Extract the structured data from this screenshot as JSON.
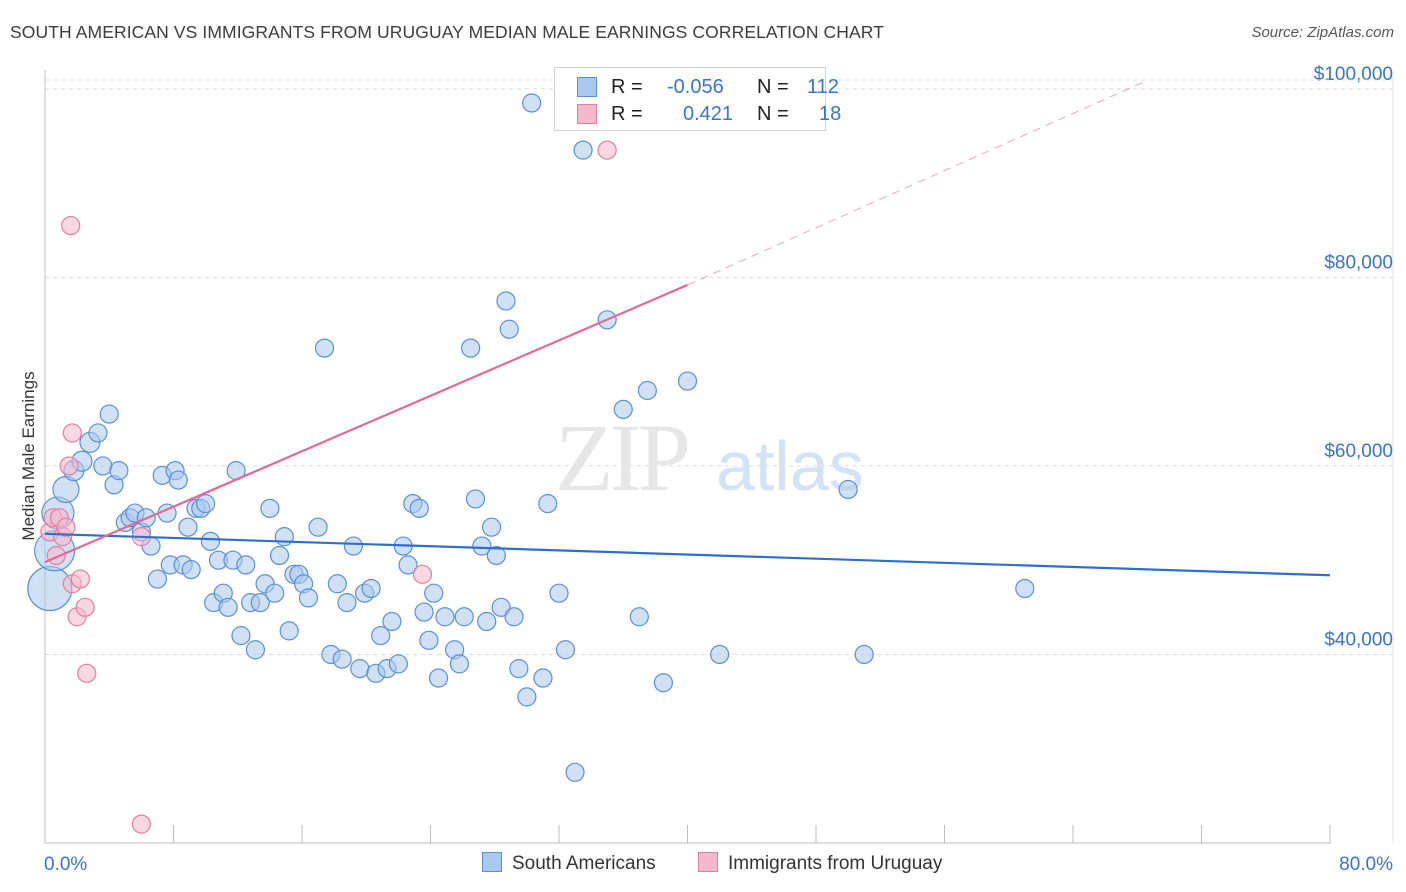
{
  "title": "SOUTH AMERICAN VS IMMIGRANTS FROM URUGUAY MEDIAN MALE EARNINGS CORRELATION CHART",
  "source": "Source: ZipAtlas.com",
  "legend": {
    "rows": [
      {
        "r_label": "R =",
        "r_value": "-0.056",
        "n_label": "N =",
        "n_value": "112"
      },
      {
        "r_label": "R =",
        "r_value": "0.421",
        "n_label": "N =",
        "n_value": "18"
      }
    ]
  },
  "watermark": {
    "zip": "ZIP",
    "atlas": "atlas"
  },
  "colors": {
    "blue_fill": "#a9c8ee",
    "blue_stroke": "#5b8fd6",
    "blue_line": "#2f6fcc",
    "pink_fill": "#f6b8cc",
    "pink_stroke": "#e07fa0",
    "pink_line": "#e06a96",
    "tick_text": "#3b73c9",
    "grid": "#dcdcdc"
  },
  "chart_data": {
    "type": "scatter",
    "title": "SOUTH AMERICAN VS IMMIGRANTS FROM URUGUAY MEDIAN MALE EARNINGS CORRELATION CHART",
    "xlabel": "",
    "ylabel": "Median Male Earnings",
    "xlim": [
      0,
      80
    ],
    "ylim": [
      20000,
      102000
    ],
    "x_tick_labels": [
      "0.0%",
      "80.0%"
    ],
    "y_ticks": [
      40000,
      60000,
      80000,
      100000
    ],
    "y_tick_labels": [
      "$40,000",
      "$60,000",
      "$80,000",
      "$100,000"
    ],
    "grid": true,
    "legend_position": "top-center",
    "series": [
      {
        "name": "South Americans",
        "r": -0.056,
        "n": 112,
        "trend": {
          "x": [
            0,
            80
          ],
          "y": [
            52800,
            48400
          ],
          "dashed_beyond": null
        },
        "points": [
          [
            0.3,
            47000,
            22
          ],
          [
            0.6,
            51000,
            20
          ],
          [
            0.8,
            55000,
            16
          ],
          [
            1.3,
            57500,
            13
          ],
          [
            1.8,
            59500,
            10
          ],
          [
            2.3,
            60500,
            10
          ],
          [
            2.8,
            62500,
            10
          ],
          [
            3.3,
            63500,
            9
          ],
          [
            3.6,
            60000,
            9
          ],
          [
            4.0,
            65500,
            9
          ],
          [
            4.3,
            58000,
            9
          ],
          [
            4.6,
            59500,
            9
          ],
          [
            5.0,
            54000,
            9
          ],
          [
            5.3,
            54500,
            9
          ],
          [
            5.6,
            55000,
            9
          ],
          [
            6.0,
            53000,
            9
          ],
          [
            6.3,
            54500,
            9
          ],
          [
            6.6,
            51500,
            9
          ],
          [
            7.0,
            48000,
            9
          ],
          [
            7.3,
            59000,
            9
          ],
          [
            7.6,
            55000,
            9
          ],
          [
            7.8,
            49500,
            9
          ],
          [
            8.1,
            59500,
            9
          ],
          [
            8.3,
            58500,
            9
          ],
          [
            8.6,
            49500,
            9
          ],
          [
            8.9,
            53500,
            9
          ],
          [
            9.1,
            49000,
            9
          ],
          [
            9.4,
            55500,
            9
          ],
          [
            9.7,
            55500,
            9
          ],
          [
            10.0,
            56000,
            9
          ],
          [
            10.3,
            52000,
            9
          ],
          [
            10.5,
            45500,
            9
          ],
          [
            10.8,
            50000,
            9
          ],
          [
            11.1,
            46500,
            9
          ],
          [
            11.4,
            45000,
            9
          ],
          [
            11.7,
            50000,
            9
          ],
          [
            11.9,
            59500,
            9
          ],
          [
            12.2,
            42000,
            9
          ],
          [
            12.5,
            49500,
            9
          ],
          [
            12.8,
            45500,
            9
          ],
          [
            13.1,
            40500,
            9
          ],
          [
            13.4,
            45500,
            9
          ],
          [
            13.7,
            47500,
            9
          ],
          [
            14.0,
            55500,
            9
          ],
          [
            14.3,
            46500,
            9
          ],
          [
            14.6,
            50500,
            9
          ],
          [
            14.9,
            52500,
            9
          ],
          [
            15.2,
            42500,
            9
          ],
          [
            15.5,
            48500,
            9
          ],
          [
            15.8,
            48500,
            9
          ],
          [
            16.1,
            47500,
            9
          ],
          [
            16.4,
            46000,
            9
          ],
          [
            17.0,
            53500,
            9
          ],
          [
            17.4,
            72500,
            9
          ],
          [
            17.8,
            40000,
            9
          ],
          [
            18.2,
            47500,
            9
          ],
          [
            18.5,
            39500,
            9
          ],
          [
            18.8,
            45500,
            9
          ],
          [
            19.2,
            51500,
            9
          ],
          [
            19.6,
            38500,
            9
          ],
          [
            19.9,
            46500,
            9
          ],
          [
            20.3,
            47000,
            9
          ],
          [
            20.6,
            38000,
            9
          ],
          [
            20.9,
            42000,
            9
          ],
          [
            21.3,
            38500,
            9
          ],
          [
            21.6,
            43500,
            9
          ],
          [
            22.0,
            39000,
            9
          ],
          [
            22.3,
            51500,
            9
          ],
          [
            22.6,
            49500,
            9
          ],
          [
            22.9,
            56000,
            9
          ],
          [
            23.3,
            55500,
            9
          ],
          [
            23.6,
            44500,
            9
          ],
          [
            23.9,
            41500,
            9
          ],
          [
            24.2,
            46500,
            9
          ],
          [
            24.5,
            37500,
            9
          ],
          [
            24.9,
            44000,
            9
          ],
          [
            25.5,
            40500,
            9
          ],
          [
            25.8,
            39000,
            9
          ],
          [
            26.1,
            44000,
            9
          ],
          [
            26.5,
            72500,
            9
          ],
          [
            26.8,
            56500,
            9
          ],
          [
            27.2,
            51500,
            9
          ],
          [
            27.5,
            43500,
            9
          ],
          [
            27.8,
            53500,
            9
          ],
          [
            28.1,
            50500,
            9
          ],
          [
            28.4,
            45000,
            9
          ],
          [
            28.7,
            77500,
            9
          ],
          [
            28.9,
            74500,
            9
          ],
          [
            29.2,
            44000,
            9
          ],
          [
            29.5,
            38500,
            9
          ],
          [
            30.0,
            35500,
            9
          ],
          [
            30.3,
            98500,
            9
          ],
          [
            31.0,
            37500,
            9
          ],
          [
            31.3,
            56000,
            9
          ],
          [
            32.0,
            46500,
            9
          ],
          [
            32.4,
            40500,
            9
          ],
          [
            33.0,
            27500,
            9
          ],
          [
            33.5,
            93500,
            9
          ],
          [
            35.0,
            75500,
            9
          ],
          [
            36.0,
            66000,
            9
          ],
          [
            37.0,
            44000,
            9
          ],
          [
            37.5,
            68000,
            9
          ],
          [
            38.5,
            37000,
            9
          ],
          [
            40.0,
            69000,
            9
          ],
          [
            42.0,
            40000,
            9
          ],
          [
            50.0,
            57500,
            9
          ],
          [
            51.0,
            40000,
            9
          ],
          [
            61.0,
            47000,
            9
          ]
        ]
      },
      {
        "name": "Immigrants from Uruguay",
        "r": 0.421,
        "n": 18,
        "trend": {
          "x": [
            0,
            40
          ],
          "y": [
            49800,
            79200
          ],
          "dashed_to": [
            68.5,
            100800
          ]
        },
        "points": [
          [
            0.3,
            53000,
            9
          ],
          [
            0.5,
            54500,
            9
          ],
          [
            0.7,
            50500,
            9
          ],
          [
            0.9,
            54500,
            9
          ],
          [
            1.1,
            52500,
            9
          ],
          [
            1.3,
            53500,
            9
          ],
          [
            1.5,
            60000,
            9
          ],
          [
            1.7,
            47500,
            9
          ],
          [
            1.6,
            85500,
            9
          ],
          [
            1.7,
            63500,
            9
          ],
          [
            2.0,
            44000,
            9
          ],
          [
            2.2,
            48000,
            9
          ],
          [
            2.5,
            45000,
            9
          ],
          [
            2.6,
            38000,
            9
          ],
          [
            6.0,
            52500,
            9
          ],
          [
            6.0,
            22000,
            9
          ],
          [
            23.5,
            48500,
            9
          ],
          [
            35.0,
            93500,
            9
          ]
        ]
      }
    ]
  },
  "bottom_legend": [
    "South Americans",
    "Immigrants from Uruguay"
  ]
}
